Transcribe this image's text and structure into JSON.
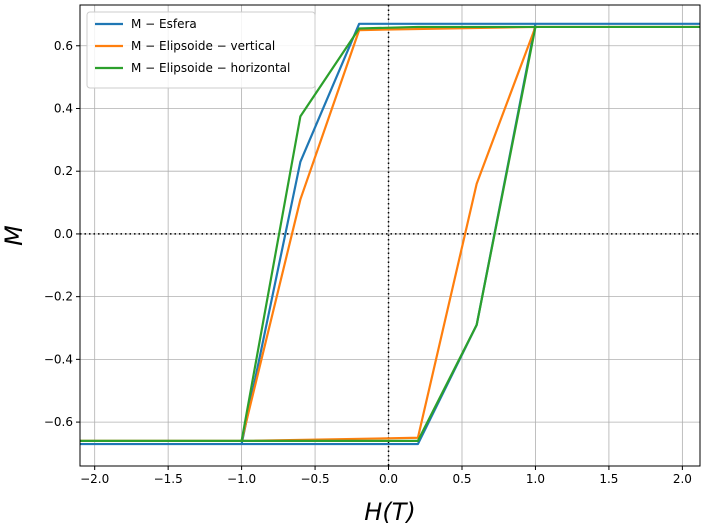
{
  "chart_data": {
    "type": "line",
    "title": "",
    "xlabel": "H(T)",
    "ylabel": "M",
    "xlim": [
      -2.1,
      2.12
    ],
    "ylim": [
      -0.74,
      0.73
    ],
    "xticks": [
      -2.0,
      -1.5,
      -1.0,
      -0.5,
      0.0,
      0.5,
      1.0,
      1.5,
      2.0
    ],
    "xtick_labels": [
      "−2.0",
      "−1.5",
      "−1.0",
      "−0.5",
      "0.0",
      "0.5",
      "1.0",
      "1.5",
      "2.0"
    ],
    "yticks": [
      -0.6,
      -0.4,
      -0.2,
      0.0,
      0.2,
      0.4,
      0.6
    ],
    "ytick_labels": [
      "−0.6",
      "−0.4",
      "−0.2",
      "0.0",
      "0.2",
      "0.4",
      "0.6"
    ],
    "grid": true,
    "legend_position": "top-left",
    "zero_lines": "dotted black lines at x=0 and y=0",
    "series": [
      {
        "name": "M − Esfera",
        "color": "#1f77b4",
        "x": [
          -2.2,
          -1.0,
          0.2,
          0.6,
          1.0,
          2.2,
          1.0,
          0.2,
          -0.2,
          -0.6,
          -1.0,
          -2.2
        ],
        "y": [
          -0.67,
          -0.67,
          -0.67,
          -0.29,
          0.67,
          0.67,
          0.67,
          0.67,
          0.67,
          0.23,
          -0.67,
          -0.67
        ]
      },
      {
        "name": "M − Elipsoide − vertical",
        "color": "#ff7f0e",
        "x": [
          -2.2,
          -1.0,
          0.2,
          0.6,
          1.0,
          2.2,
          1.0,
          -0.2,
          -0.6,
          -1.0,
          -2.2
        ],
        "y": [
          -0.66,
          -0.66,
          -0.65,
          0.16,
          0.66,
          0.66,
          0.66,
          0.65,
          0.11,
          -0.66,
          -0.66
        ]
      },
      {
        "name": "M − Elipsoide − horizontal",
        "color": "#2ca02c",
        "x": [
          -2.2,
          -1.0,
          0.2,
          0.6,
          1.0,
          2.2,
          1.0,
          0.2,
          -0.2,
          -0.6,
          -1.0,
          -2.2
        ],
        "y": [
          -0.66,
          -0.66,
          -0.66,
          -0.29,
          0.66,
          0.66,
          0.66,
          0.66,
          0.655,
          0.375,
          -0.66,
          -0.66
        ]
      }
    ]
  }
}
